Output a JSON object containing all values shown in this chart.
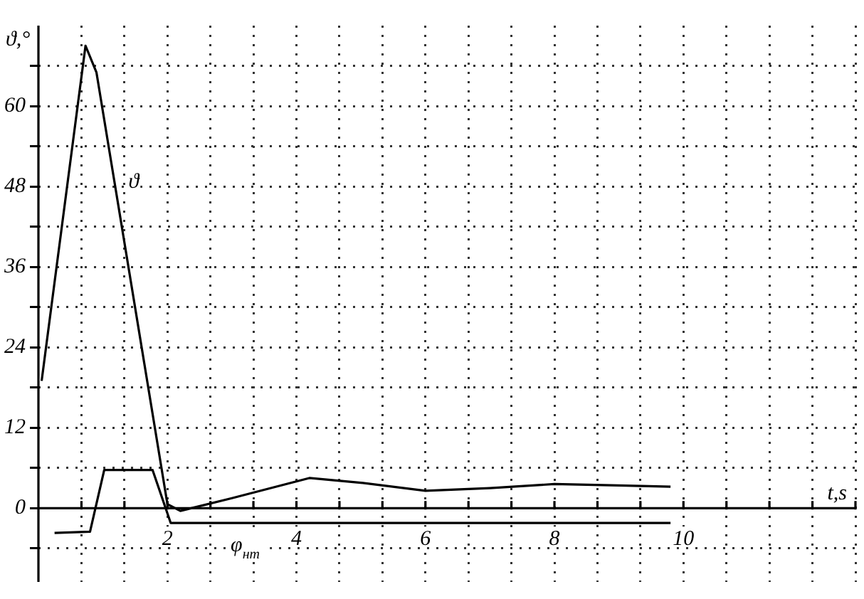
{
  "chart_data": {
    "type": "line",
    "xlabel": "t,s",
    "ylabel": "ϑ,°",
    "xlim": [
      0,
      12.667
    ],
    "ylim": [
      -11,
      72
    ],
    "xticks": [
      {
        "value": 0.667,
        "label": null
      },
      {
        "value": 1.333,
        "label": null
      },
      2,
      {
        "value": 2.667,
        "label": null
      },
      {
        "value": 3.333,
        "label": null
      },
      4,
      {
        "value": 4.667,
        "label": null
      },
      {
        "value": 5.333,
        "label": null
      },
      6,
      {
        "value": 6.667,
        "label": null
      },
      {
        "value": 7.333,
        "label": null
      },
      8,
      {
        "value": 8.667,
        "label": null
      },
      {
        "value": 9.333,
        "label": null
      },
      10,
      {
        "value": 10.667,
        "label": null
      },
      {
        "value": 11.333,
        "label": null
      },
      {
        "value": 12,
        "label": null
      },
      {
        "value": 12.667,
        "label": null
      }
    ],
    "yticks": [
      {
        "value": -6,
        "label": null
      },
      0,
      {
        "value": 6,
        "label": null
      },
      12,
      {
        "value": 18,
        "label": null
      },
      24,
      {
        "value": 30,
        "label": null
      },
      36,
      {
        "value": 42,
        "label": null
      },
      48,
      {
        "value": 54,
        "label": null
      },
      60,
      {
        "value": 66,
        "label": null
      }
    ],
    "grid": true,
    "legend": false,
    "marker": "none",
    "line_style": "solid",
    "series": [
      {
        "name": "ϑ",
        "color": "#000000",
        "x": [
          0.05,
          0.73,
          0.9,
          2.0,
          2.2,
          3.0,
          4.2,
          5.0,
          6.0,
          7.0,
          8.0,
          9.0,
          9.8
        ],
        "values": [
          19,
          69,
          65,
          0.6,
          -0.4,
          1.5,
          4.5,
          3.8,
          2.6,
          3.0,
          3.6,
          3.4,
          3.2
        ]
      },
      {
        "name": "φ$_{нт}$",
        "color": "#000000",
        "x": [
          0.25,
          0.8,
          1.02,
          1.77,
          2.05,
          9.8
        ],
        "values": [
          -3.7,
          -3.5,
          5.7,
          5.7,
          -2.2,
          -2.2
        ]
      }
    ]
  }
}
